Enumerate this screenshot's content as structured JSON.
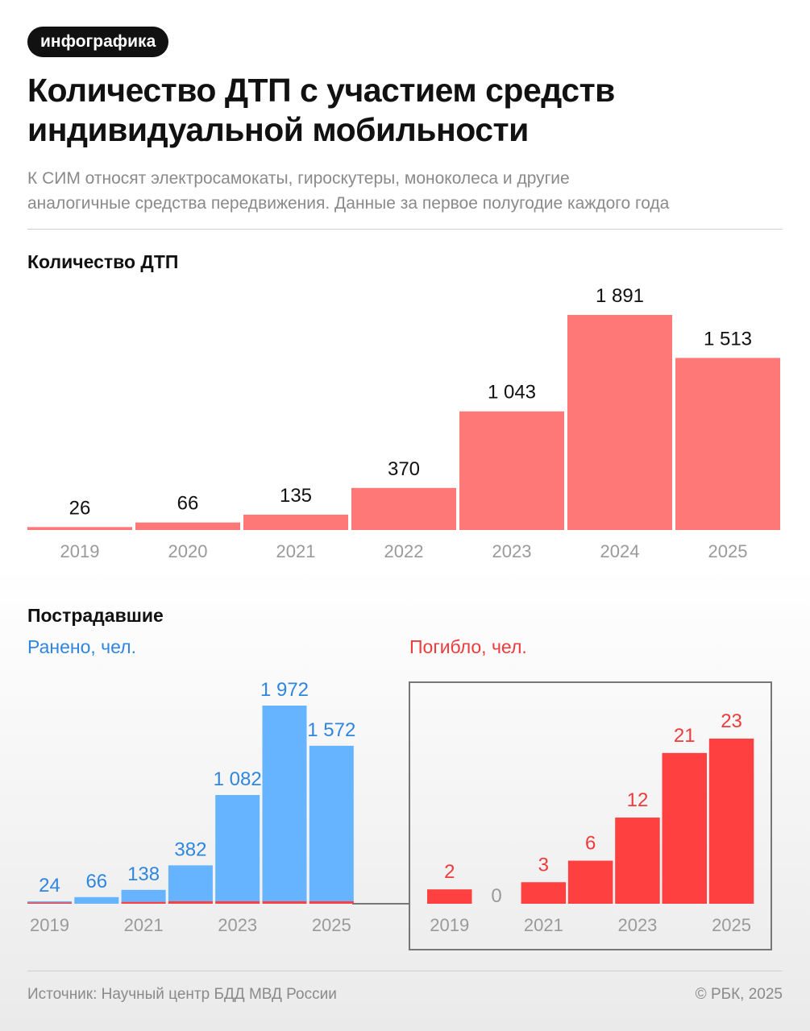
{
  "badge": "инфографика",
  "title": [
    "Количество ДТП с участием средств",
    "индивидуальной мобильности"
  ],
  "subtitle": [
    "К СИМ относят электросамокаты, гироскутеры, моноколеса и другие",
    "аналогичные средства передвижения. Данные за первое полугодие каждого года"
  ],
  "sections": {
    "accidents": "Количество ДТП",
    "victims": "Пострадавшие",
    "injured_legend": "Ранено, чел.",
    "killed_legend": "Погибло, чел."
  },
  "footer": {
    "source": "Источник: Научный центр БДД МВД России",
    "copyright": "© РБК, 2025"
  },
  "colors": {
    "accidents": "#ff7878",
    "injured": "#66b3ff",
    "injured_text": "#2f86e0",
    "killed": "#ff4040",
    "killed_text": "#ee3b3b"
  },
  "chart_data": [
    {
      "type": "bar",
      "title": "Количество ДТП",
      "categories": [
        "2019",
        "2020",
        "2021",
        "2022",
        "2023",
        "2024",
        "2025"
      ],
      "tick_labels": [
        "2019",
        "2020",
        "2021",
        "2022",
        "2023",
        "2024",
        "2025"
      ],
      "values": [
        26,
        66,
        135,
        370,
        1043,
        1891,
        1513
      ],
      "value_labels": [
        "26",
        "66",
        "135",
        "370",
        "1 043",
        "1 891",
        "1 513"
      ],
      "ylim": [
        0,
        1891
      ]
    },
    {
      "type": "bar",
      "title": "Ранено, чел.",
      "categories": [
        "2019",
        "2020",
        "2021",
        "2022",
        "2023",
        "2024",
        "2025"
      ],
      "tick_labels": [
        "2019",
        "",
        "2021",
        "",
        "2023",
        "",
        "2025"
      ],
      "values": [
        24,
        66,
        138,
        382,
        1082,
        1972,
        1572
      ],
      "value_labels": [
        "24",
        "66",
        "138",
        "382",
        "1 082",
        "1 972",
        "1 572"
      ],
      "ylim": [
        0,
        1972
      ]
    },
    {
      "type": "bar",
      "title": "Погибло, чел.",
      "categories": [
        "2019",
        "2020",
        "2021",
        "2022",
        "2023",
        "2024",
        "2025"
      ],
      "tick_labels": [
        "2019",
        "",
        "2021",
        "",
        "2023",
        "",
        "2025"
      ],
      "values": [
        2,
        0,
        3,
        6,
        12,
        21,
        23
      ],
      "value_labels": [
        "2",
        "0",
        "3",
        "6",
        "12",
        "21",
        "23"
      ],
      "ylim": [
        0,
        23
      ]
    }
  ]
}
